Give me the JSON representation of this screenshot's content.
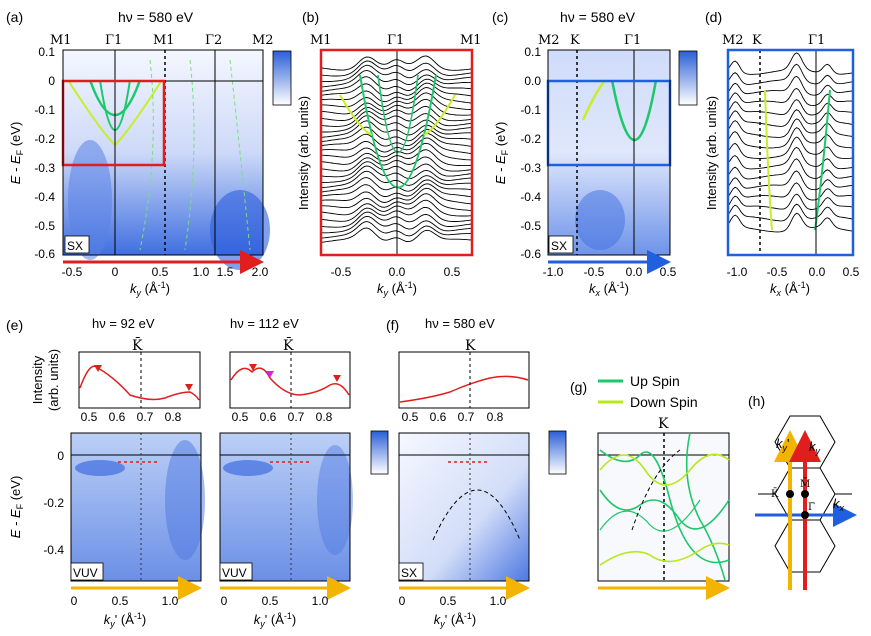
{
  "colors": {
    "accent_red": "#e01e1e",
    "accent_blue": "#1f5fe0",
    "arrow_yellow": "#f2b400",
    "up_spin": "#1ec76a",
    "down_spin": "#b8e81e"
  },
  "hv580": "hν = 580 eV",
  "hv92": "hν = 92 eV",
  "hv112": "hν = 112 eV",
  "axis": {
    "energy": "E - E",
    "energy_sub": "F",
    "energy_unit": " (eV)",
    "intensity": "Intensity (arb. units)",
    "intensity_e_l1": "Intensity",
    "intensity_e_l2": "(arb. units)",
    "ky": "k",
    "ky_sub": "y",
    "kx_sub": "x",
    "kyp_sub": "y",
    "kyp_prime": "'",
    "unit": " (Å",
    "unit_exp": "-1",
    "unit_close": ")"
  },
  "panels": {
    "a": {
      "label": "(a)",
      "tag": "SX",
      "sym": [
        "M1",
        "Γ1",
        "M1",
        "Γ2",
        "M2"
      ],
      "yticks": [
        "0.1",
        "0",
        "-0.1",
        "-0.2",
        "-0.3",
        "-0.4",
        "-0.5",
        "-0.6"
      ],
      "xticks": [
        "-0.5",
        "0",
        "0.5",
        "1.0",
        "1.5",
        "2.0"
      ]
    },
    "b": {
      "label": "(b)",
      "sym": [
        "M1",
        "Γ1",
        "M1"
      ],
      "xticks": [
        "-0.5",
        "0.0",
        "0.5"
      ]
    },
    "c": {
      "label": "(c)",
      "tag": "SX",
      "sym": [
        "M2",
        "K",
        "Γ1"
      ],
      "yticks": [
        "0.1",
        "0.0",
        "-0.1",
        "-0.2",
        "-0.3",
        "-0.4",
        "-0.5",
        "-0.6"
      ],
      "xticks": [
        "-1.0",
        "-0.5",
        "0.0",
        "0.5"
      ]
    },
    "d": {
      "label": "(d)",
      "sym": [
        "M2",
        "K",
        "Γ1"
      ],
      "xticks": [
        "-1.0",
        "-0.5",
        "0.0",
        "0.5"
      ]
    },
    "e": {
      "label": "(e)",
      "tag1": "VUV",
      "tag2": "VUV",
      "kbar": "K̄",
      "xticks_top1": [
        "0.5",
        "0.6",
        "0.7",
        "0.8"
      ],
      "xticks_top2": [
        "0.5",
        "0.6",
        "0.7",
        "0.8"
      ],
      "yticks": [
        "0",
        "-0.2",
        "-0.4"
      ],
      "xticks": [
        "0",
        "0.5",
        "1.0"
      ]
    },
    "f": {
      "label": "(f)",
      "tag": "SX",
      "k": "K",
      "xticks_top": [
        "0.5",
        "0.6",
        "0.7",
        "0.8"
      ],
      "xticks": [
        "0",
        "0.5",
        "1.0"
      ]
    },
    "g": {
      "label": "(g)",
      "k": "K",
      "legend_up": "Up Spin",
      "legend_down": "Down Spin"
    },
    "h": {
      "label": "(h)",
      "k_bar": "K̄",
      "m_bar": "M̄",
      "gamma_bar": "Γ̄",
      "ky": "k",
      "ky_sub": "y",
      "kyp_sub": "y",
      "kyp_prime": "'",
      "kx_sub": "x"
    }
  }
}
